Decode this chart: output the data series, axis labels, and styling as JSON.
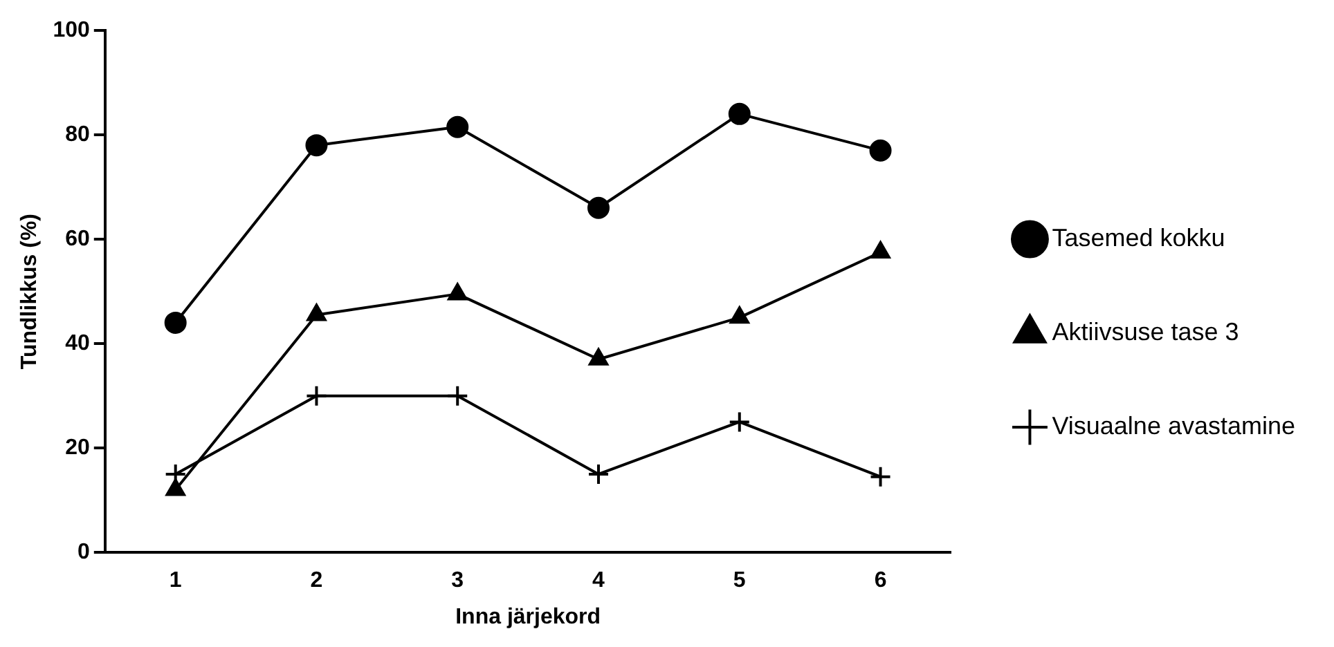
{
  "chart_data": {
    "type": "line",
    "xlabel": "Inna järjekord",
    "ylabel": "Tundlikkus (%)",
    "categories": [
      "1",
      "2",
      "3",
      "4",
      "5",
      "6"
    ],
    "ylim": [
      0,
      100
    ],
    "yticks": [
      0,
      20,
      40,
      60,
      80,
      100
    ],
    "grid": false,
    "legend": "right",
    "series": [
      {
        "name": "Tasemed kokku",
        "color": "#000000",
        "marker": "circle",
        "values": [
          44,
          78,
          81.5,
          66,
          84,
          77
        ]
      },
      {
        "name": "Aktiivsuse tase 3",
        "color": "#000000",
        "marker": "triangle",
        "values": [
          12,
          45.5,
          49.5,
          37,
          45,
          57.5
        ]
      },
      {
        "name": "Visuaalne avastamine",
        "color": "#000000",
        "marker": "cross",
        "values": [
          15,
          30,
          30,
          15,
          25,
          14.5
        ]
      }
    ]
  }
}
